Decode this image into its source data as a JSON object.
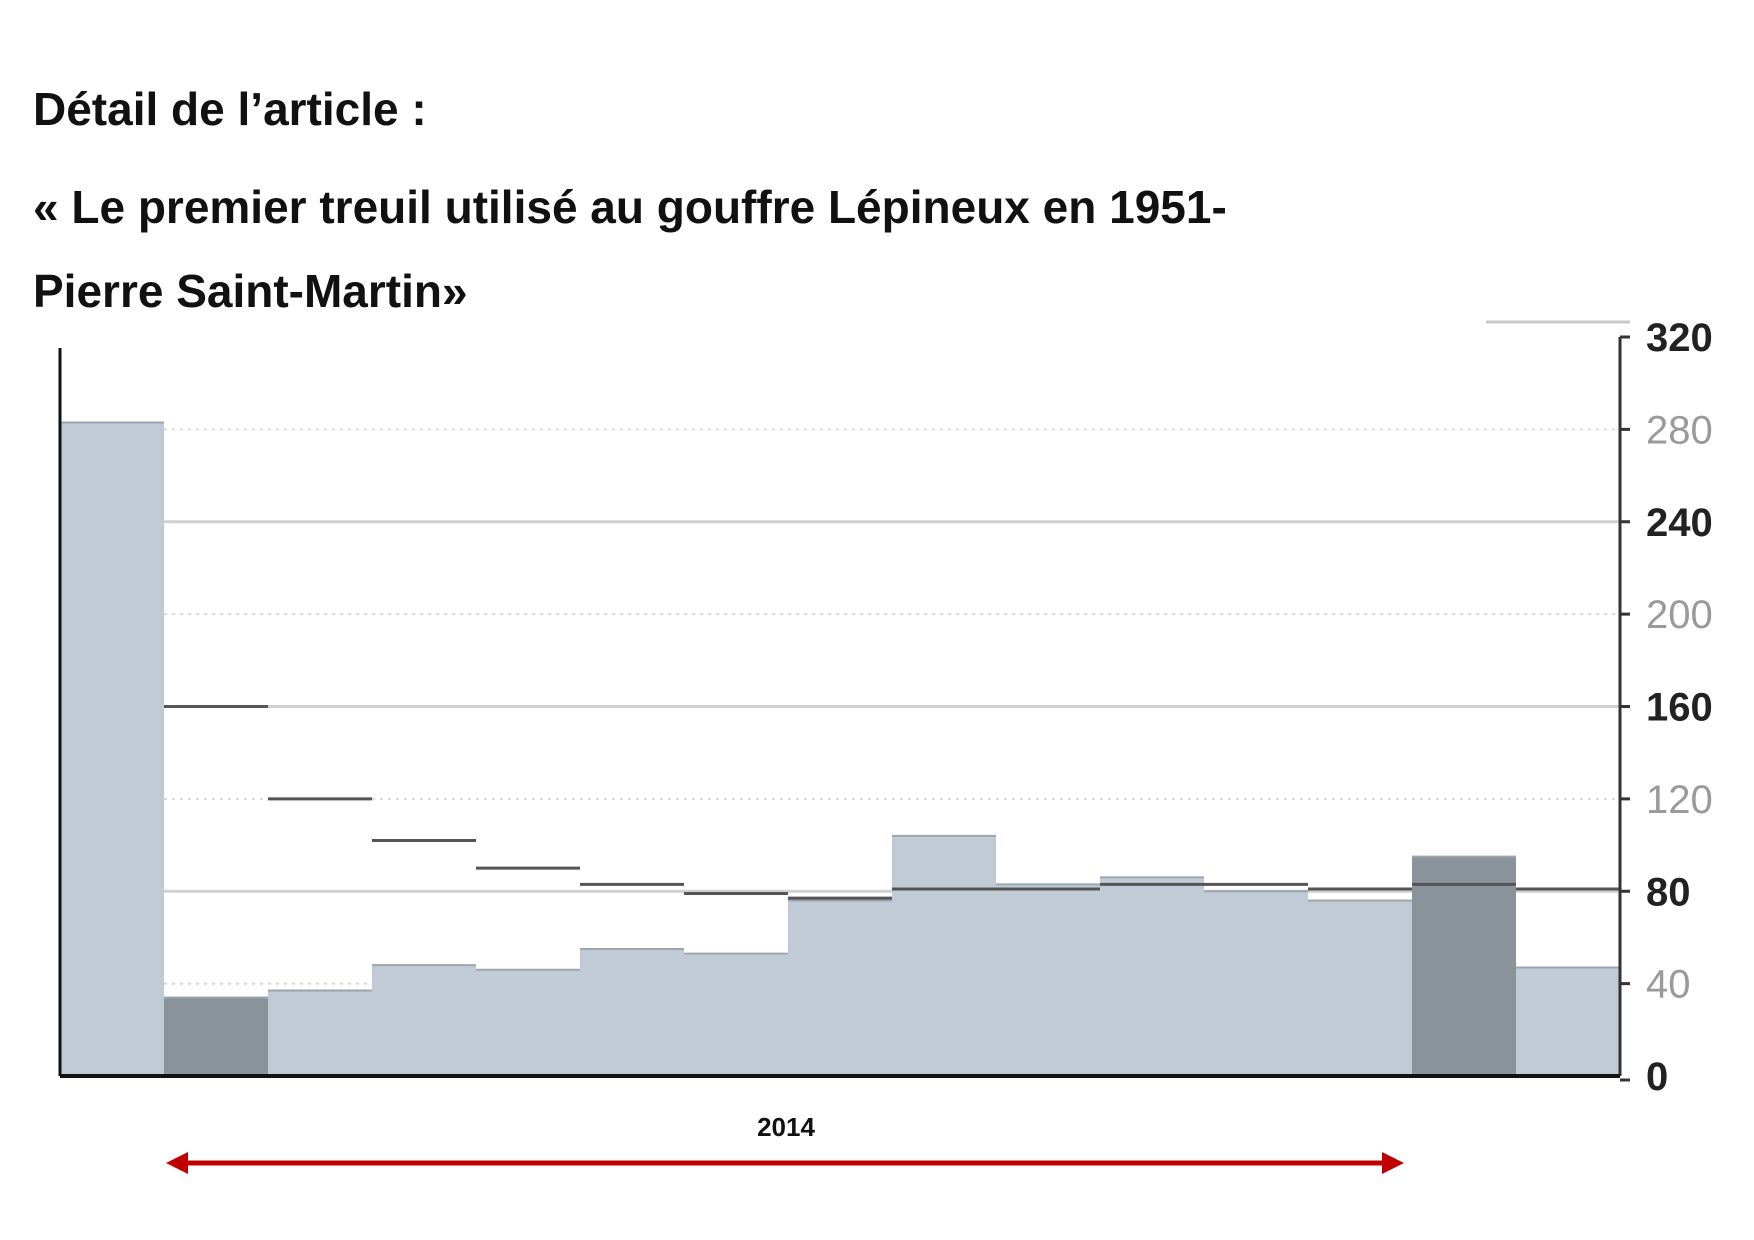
{
  "heading": {
    "line1": "Détail de l’article :",
    "line2": "« Le premier treuil utilisé au gouffre Lépineux en 1951-",
    "line3": "Pierre Saint-Martin»"
  },
  "annotation": {
    "period_label": "2014",
    "arrow_color": "#c00000"
  },
  "chart_data": {
    "type": "bar",
    "title": "",
    "xlabel": "",
    "ylabel": "",
    "ylim": [
      0,
      320
    ],
    "y_axis_side": "right",
    "yticks": [
      0,
      40,
      80,
      120,
      160,
      200,
      240,
      280,
      320
    ],
    "bold_ticks": [
      0,
      80,
      160,
      240,
      320
    ],
    "grid": true,
    "colors": {
      "bar": "#c0cbd6",
      "bar_highlight": "#8a939c",
      "trend_line": "#555555",
      "grid_major": "#d0d0d0",
      "grid_minor": "#d8d8d8"
    },
    "values": [
      283,
      34,
      37,
      48,
      46,
      55,
      53,
      76,
      104,
      83,
      86,
      80,
      76,
      95,
      47
    ],
    "trend": [
      null,
      160,
      120,
      102,
      90,
      83,
      79,
      77,
      81,
      81,
      83,
      83,
      81,
      83,
      81
    ],
    "highlight": [
      false,
      true,
      false,
      false,
      false,
      false,
      false,
      false,
      false,
      false,
      false,
      false,
      false,
      true,
      false
    ]
  }
}
